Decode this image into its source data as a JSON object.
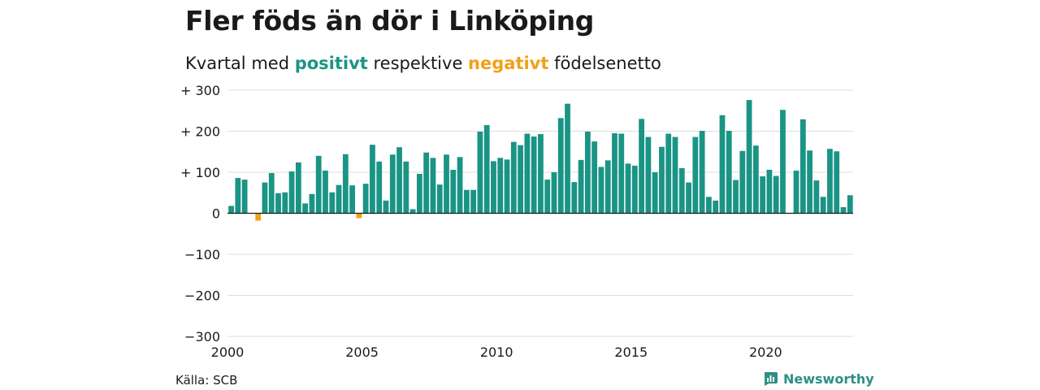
{
  "chart_data": {
    "type": "bar",
    "title": "Fler föds än dör i Linköping",
    "subtitle": {
      "prefix": "Kvartal med ",
      "positive": "positivt",
      "middle": " respektive ",
      "negative": "negativt",
      "suffix": " födelsenetto"
    },
    "xlabel": "",
    "ylabel": "",
    "x_start": 2000,
    "x_end": 2023.25,
    "xticks": [
      2000,
      2005,
      2010,
      2015,
      2020
    ],
    "xtick_labels": [
      "2000",
      "2005",
      "2010",
      "2015",
      "2020"
    ],
    "ylim": [
      -300,
      300
    ],
    "yticks": [
      300,
      200,
      100,
      0,
      -100,
      -200,
      -300
    ],
    "ytick_labels": [
      "+ 300",
      "+ 200",
      "+ 100",
      "0",
      "−100",
      "−200",
      "−300"
    ],
    "grid": true,
    "colors": {
      "positive": "#1a9485",
      "negative": "#f0a019"
    },
    "quarters_start": "2000Q1",
    "values": [
      18,
      86,
      82,
      0,
      -18,
      75,
      98,
      49,
      51,
      102,
      124,
      24,
      47,
      140,
      104,
      51,
      69,
      144,
      68,
      -12,
      72,
      167,
      126,
      31,
      143,
      161,
      126,
      10,
      96,
      148,
      135,
      70,
      143,
      106,
      137,
      57,
      57,
      199,
      215,
      127,
      135,
      131,
      174,
      166,
      194,
      187,
      193,
      82,
      100,
      232,
      267,
      76,
      130,
      199,
      175,
      113,
      129,
      195,
      194,
      121,
      116,
      230,
      186,
      100,
      162,
      194,
      186,
      110,
      75,
      186,
      201,
      40,
      31,
      239,
      201,
      81,
      152,
      276,
      165,
      90,
      106,
      91,
      252,
      0,
      104,
      229,
      153,
      80,
      40,
      157,
      151,
      15,
      44
    ]
  },
  "source": "Källa: SCB",
  "brand": {
    "name": "Newsworthy",
    "icon": "bar-chart-logo-icon",
    "color": "#2e8f85"
  }
}
